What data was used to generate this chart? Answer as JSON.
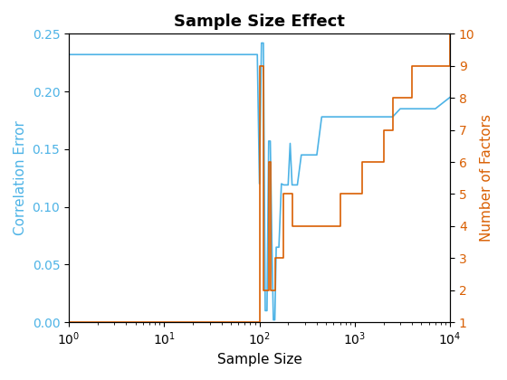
{
  "title": "Sample Size Effect",
  "xlabel": "Sample Size",
  "ylabel_left": "Correlation Error",
  "ylabel_right": "Number of Factors",
  "left_color": "#4db3e6",
  "right_color": "#d95f02",
  "xlim": [
    1,
    10000
  ],
  "ylim_left": [
    0,
    0.25
  ],
  "ylim_right": [
    1,
    10
  ],
  "blue_x": [
    1,
    50,
    55,
    60,
    65,
    70,
    75,
    80,
    85,
    90,
    95,
    100,
    105,
    110,
    115,
    120,
    125,
    130,
    135,
    140,
    145,
    150,
    160,
    170,
    180,
    190,
    200,
    210,
    220,
    230,
    250,
    275,
    300,
    350,
    400,
    450,
    500,
    600,
    700,
    800,
    900,
    1000,
    1200,
    1500,
    2000,
    2500,
    3000,
    4000,
    5000,
    7000,
    10000
  ],
  "blue_y": [
    0.232,
    0.232,
    0.232,
    0.232,
    0.232,
    0.232,
    0.232,
    0.232,
    0.232,
    0.232,
    0.232,
    0.12,
    0.242,
    0.242,
    0.01,
    0.01,
    0.157,
    0.157,
    0.07,
    0.002,
    0.002,
    0.065,
    0.065,
    0.12,
    0.119,
    0.119,
    0.119,
    0.155,
    0.119,
    0.119,
    0.119,
    0.145,
    0.145,
    0.145,
    0.145,
    0.178,
    0.178,
    0.178,
    0.178,
    0.178,
    0.178,
    0.178,
    0.178,
    0.178,
    0.178,
    0.178,
    0.185,
    0.185,
    0.185,
    0.185,
    0.195
  ],
  "orange_x": [
    1,
    50,
    55,
    60,
    65,
    70,
    75,
    80,
    85,
    90,
    95,
    100,
    105,
    110,
    115,
    120,
    125,
    130,
    135,
    140,
    145,
    150,
    160,
    170,
    180,
    200,
    220,
    250,
    300,
    350,
    400,
    500,
    600,
    700,
    800,
    900,
    1000,
    1200,
    1500,
    2000,
    2500,
    3000,
    4000,
    5000,
    7000,
    10000
  ],
  "orange_y": [
    1,
    1,
    1,
    1,
    1,
    1,
    1,
    1,
    1,
    1,
    1,
    9,
    9,
    2,
    2,
    2,
    6,
    2,
    2,
    2,
    3,
    3,
    3,
    3,
    5,
    5,
    4,
    4,
    4,
    4,
    4,
    4,
    4,
    5,
    5,
    5,
    5,
    6,
    6,
    7,
    8,
    8,
    9,
    9,
    9,
    10
  ]
}
